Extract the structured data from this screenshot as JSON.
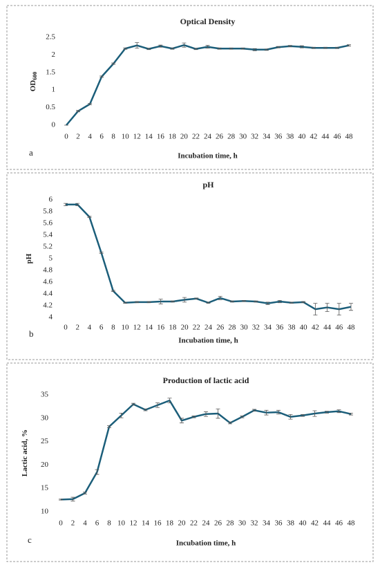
{
  "chart_data": [
    {
      "type": "line",
      "title": "Optical Density",
      "panel_label": "a",
      "xlabel": "Incubation time, h",
      "ylabel": "OD",
      "ylabel_subscript": "600",
      "categories": [
        "0",
        "2",
        "4",
        "6",
        "8",
        "10",
        "12",
        "14",
        "16",
        "18",
        "20",
        "22",
        "24",
        "26",
        "28",
        "30",
        "32",
        "34",
        "36",
        "38",
        "40",
        "42",
        "44",
        "46",
        "48"
      ],
      "series": [
        {
          "name": "Optical Density",
          "color": "#1b5e7a",
          "values": [
            0,
            0.4,
            0.6,
            1.38,
            1.75,
            2.18,
            2.27,
            2.17,
            2.25,
            2.18,
            2.28,
            2.17,
            2.23,
            2.18,
            2.18,
            2.18,
            2.15,
            2.15,
            2.22,
            2.25,
            2.23,
            2.2,
            2.2,
            2.2,
            2.27
          ],
          "errors": [
            0,
            0.02,
            0.02,
            0.02,
            0.02,
            0.02,
            0.08,
            0.02,
            0.03,
            0.02,
            0.06,
            0.02,
            0.04,
            0.02,
            0.02,
            0.02,
            0.03,
            0.02,
            0.02,
            0.02,
            0.03,
            0.02,
            0.02,
            0.02,
            0.02
          ]
        }
      ],
      "ylim": [
        0,
        2.5
      ],
      "yticks": [
        0,
        0.5,
        1,
        1.5,
        2,
        2.5
      ],
      "grid": false
    },
    {
      "type": "line",
      "title": "pH",
      "panel_label": "b",
      "xlabel": "Incubation time, h",
      "ylabel": "pH",
      "categories": [
        "0",
        "2",
        "4",
        "6",
        "8",
        "10",
        "12",
        "14",
        "16",
        "18",
        "20",
        "22",
        "24",
        "26",
        "28",
        "30",
        "32",
        "34",
        "36",
        "38",
        "40",
        "42",
        "44",
        "46",
        "48"
      ],
      "series": [
        {
          "name": "pH",
          "color": "#1b5e7a",
          "values": [
            5.92,
            5.92,
            5.71,
            5.1,
            4.45,
            4.25,
            4.26,
            4.26,
            4.27,
            4.27,
            4.3,
            4.32,
            4.25,
            4.33,
            4.27,
            4.28,
            4.27,
            4.24,
            4.27,
            4.25,
            4.26,
            4.14,
            4.17,
            4.14,
            4.18
          ],
          "errors": [
            0.02,
            0.02,
            0.01,
            0.01,
            0.01,
            0.01,
            0.01,
            0.01,
            0.04,
            0.01,
            0.04,
            0.01,
            0.01,
            0.03,
            0.01,
            0.01,
            0.01,
            0.02,
            0.02,
            0.01,
            0.01,
            0.1,
            0.07,
            0.1,
            0.06
          ]
        }
      ],
      "ylim": [
        4,
        6
      ],
      "yticks": [
        4,
        4.2,
        4.4,
        4.6,
        4.8,
        5,
        5.2,
        5.4,
        5.6,
        5.8,
        6
      ],
      "grid": false
    },
    {
      "type": "line",
      "title": "Production of lactic acid",
      "panel_label": "c",
      "xlabel": "Incubation time, h",
      "ylabel": "Lactic acid, %",
      "categories": [
        "0",
        "2",
        "4",
        "6",
        "8",
        "10",
        "12",
        "14",
        "16",
        "18",
        "20",
        "22",
        "24",
        "26",
        "28",
        "30",
        "32",
        "34",
        "36",
        "38",
        "40",
        "42",
        "44",
        "46",
        "48"
      ],
      "series": [
        {
          "name": "Lactic acid",
          "color": "#1b5e7a",
          "values": [
            12.6,
            12.7,
            14,
            18.5,
            28.2,
            30.6,
            33,
            31.8,
            32.8,
            33.8,
            29.5,
            30.3,
            30.9,
            31,
            29,
            30.3,
            31.7,
            31.2,
            31.3,
            30.3,
            30.6,
            31,
            31.3,
            31.5,
            30.9
          ],
          "errors": [
            0.1,
            0.4,
            0.2,
            0.5,
            0.2,
            0.5,
            0.2,
            0.2,
            0.5,
            0.5,
            0.5,
            0.2,
            0.5,
            1,
            0.2,
            0.2,
            0.2,
            0.5,
            0.4,
            0.5,
            0.2,
            0.6,
            0.2,
            0.3,
            0.2
          ]
        }
      ],
      "ylim": [
        10,
        35
      ],
      "yticks": [
        10,
        15,
        20,
        25,
        30,
        35
      ],
      "grid": false
    }
  ]
}
